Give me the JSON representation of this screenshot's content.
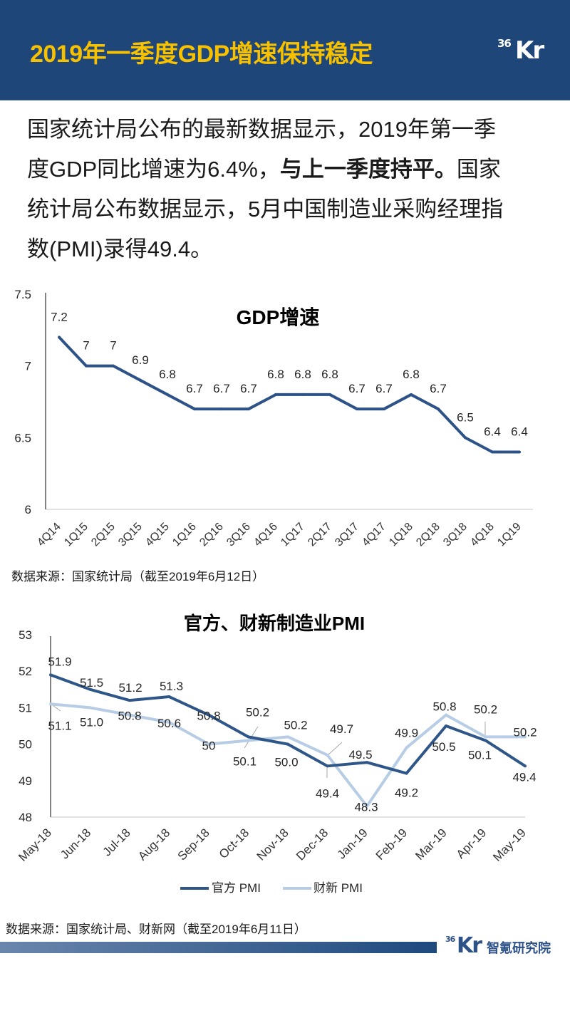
{
  "header": {
    "title": "2019年一季度GDP增速保持稳定",
    "logo_number": "36",
    "logo_letters": "Kr"
  },
  "intro": {
    "line1": "国家统计局公布的最新数据显示，2019年第一季",
    "line2_start": "度GDP同比增速为6.4%，",
    "line2_bold": "与上一季度持平。",
    "line2_end": "国家",
    "line3": "统计局公布数据显示，5月中国制造业采购经理指",
    "line4": "数(PMI)录得49.4。"
  },
  "gdp_source": "数据来源：国家统计局（截至2019年6月12日）",
  "pmi_source": "数据来源：国家统计局、财新网（截至2019年6月11日）",
  "footer": {
    "logo_number": "36",
    "logo_letters": "Kr",
    "institute": "智氪研究院"
  },
  "colors": {
    "header_bg": "#1f4678",
    "header_title": "#f8c100",
    "gdp_line": "#2c5288",
    "official_pmi": "#2e5688",
    "caixin_pmi": "#b7cce5",
    "y_axis": "#595959",
    "x_axis": "#d9d9d9",
    "leader_line": "#a6a6a6",
    "brand_blue": "#2d5288"
  },
  "chart_data": [
    {
      "type": "line",
      "title": "GDP增速",
      "xlabel": "",
      "ylabel": "",
      "ylim": [
        6,
        7.5
      ],
      "yticks": [
        6,
        6.5,
        7,
        7.5
      ],
      "ytick_labels": [
        "6",
        "6.5",
        "7",
        "7.5"
      ],
      "grid": false,
      "categories": [
        "4Q14",
        "1Q15",
        "2Q15",
        "3Q15",
        "4Q15",
        "1Q16",
        "2Q16",
        "3Q16",
        "4Q16",
        "1Q17",
        "2Q17",
        "3Q17",
        "4Q17",
        "1Q18",
        "2Q18",
        "3Q18",
        "4Q18",
        "1Q19"
      ],
      "series": [
        {
          "name": "GDP增速",
          "values": [
            7.2,
            7.0,
            7.0,
            6.9,
            6.8,
            6.7,
            6.7,
            6.7,
            6.8,
            6.8,
            6.8,
            6.7,
            6.7,
            6.8,
            6.7,
            6.5,
            6.4,
            6.4
          ],
          "labels": [
            "7.2",
            "7",
            "7",
            "6.9",
            "6.8",
            "6.7",
            "6.7",
            "6.7",
            "6.8",
            "6.8",
            "6.8",
            "6.7",
            "6.7",
            "6.8",
            "6.7",
            "6.5",
            "6.4",
            "6.4"
          ]
        }
      ]
    },
    {
      "type": "line",
      "title": "官方、财新制造业PMI",
      "xlabel": "",
      "ylabel": "",
      "ylim": [
        48,
        53
      ],
      "yticks": [
        48,
        49,
        50,
        51,
        52,
        53
      ],
      "ytick_labels": [
        "48",
        "49",
        "50",
        "51",
        "52",
        "53"
      ],
      "grid": false,
      "legend": "bottom",
      "categories": [
        "May-18",
        "Jun-18",
        "Jul-18",
        "Aug-18",
        "Sep-18",
        "Oct-18",
        "Nov-18",
        "Dec-18",
        "Jan-19",
        "Feb-19",
        "Mar-19",
        "Apr-19",
        "May-19"
      ],
      "series": [
        {
          "name": "官方 PMI",
          "values": [
            51.9,
            51.5,
            51.2,
            51.3,
            50.8,
            50.2,
            50.0,
            49.4,
            49.5,
            49.2,
            50.5,
            50.1,
            49.4
          ],
          "labels": [
            "51.9",
            "51.5",
            "51.2",
            "51.3",
            "50.8",
            "50.2",
            "50.0",
            "49.4",
            "49.5",
            "49.2",
            "50.5",
            "50.1",
            "49.4"
          ]
        },
        {
          "name": "财新 PMI",
          "values": [
            51.1,
            51.0,
            50.8,
            50.6,
            50.0,
            50.1,
            50.2,
            49.7,
            48.3,
            49.9,
            50.8,
            50.2,
            50.2
          ],
          "labels": [
            "51.1",
            "51.0",
            "50.8",
            "50.6",
            "50",
            "50.1",
            "50.2",
            "49.7",
            "48.3",
            "49.9",
            "50.8",
            "50.2",
            "50.2"
          ]
        }
      ]
    }
  ]
}
